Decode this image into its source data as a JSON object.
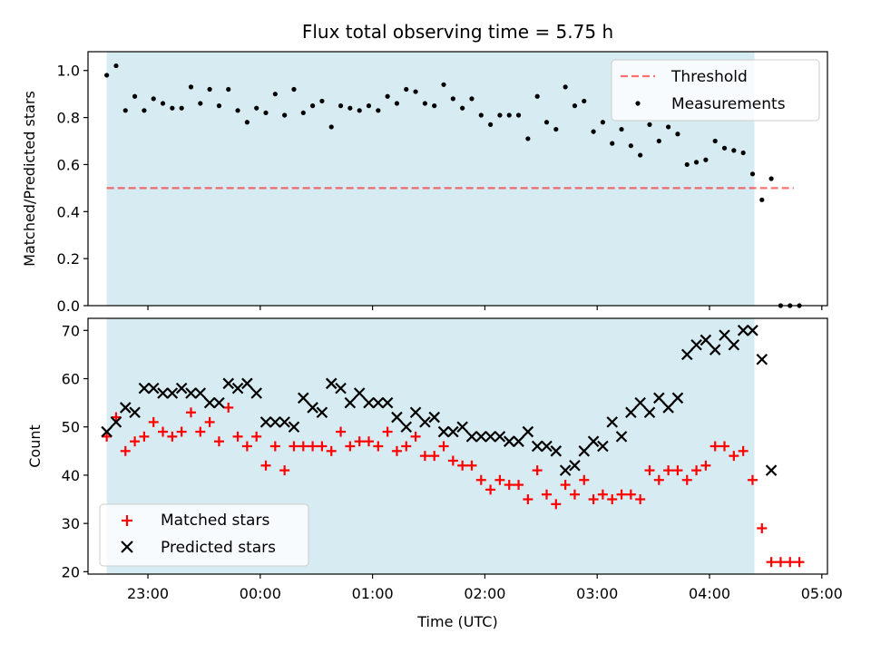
{
  "chart_data": [
    {
      "type": "scatter",
      "title": "Flux total observing time = 5.75 h",
      "xlabel": "",
      "ylabel": "Matched/Predicted stars",
      "ylim": [
        0,
        1.08
      ],
      "y_ticks": [
        "0.0",
        "0.2",
        "0.4",
        "0.6",
        "0.8",
        "1.0"
      ],
      "x_time_range": [
        "22:28",
        "05:03"
      ],
      "observing_window": [
        "22:38",
        "04:24"
      ],
      "shaded_color": "#add8e6",
      "threshold": {
        "label": "Threshold",
        "value": 0.5,
        "x": [
          "22:38",
          "04:45"
        ],
        "color": "#ff0000",
        "style": "dashed"
      },
      "legend": {
        "placement": "top-right",
        "entries": [
          "Threshold",
          "Measurements"
        ]
      },
      "series": [
        {
          "name": "Measurements",
          "color": "#000000",
          "marker": "dot",
          "x": [
            "22:38",
            "22:43",
            "22:48",
            "22:53",
            "22:58",
            "23:03",
            "23:08",
            "23:13",
            "23:18",
            "23:23",
            "23:28",
            "23:33",
            "23:38",
            "23:43",
            "23:48",
            "23:53",
            "23:58",
            "00:03",
            "00:08",
            "00:13",
            "00:18",
            "00:23",
            "00:28",
            "00:33",
            "00:38",
            "00:43",
            "00:48",
            "00:53",
            "00:58",
            "01:03",
            "01:08",
            "01:13",
            "01:18",
            "01:23",
            "01:28",
            "01:33",
            "01:38",
            "01:43",
            "01:48",
            "01:53",
            "01:58",
            "02:03",
            "02:08",
            "02:13",
            "02:18",
            "02:23",
            "02:28",
            "02:33",
            "02:38",
            "02:43",
            "02:48",
            "02:53",
            "02:58",
            "03:03",
            "03:08",
            "03:13",
            "03:18",
            "03:23",
            "03:28",
            "03:33",
            "03:38",
            "03:43",
            "03:48",
            "03:53",
            "03:58",
            "04:03",
            "04:08",
            "04:13",
            "04:18",
            "04:23",
            "04:28",
            "04:33",
            "04:38",
            "04:43",
            "04:48"
          ],
          "values": [
            0.98,
            1.02,
            0.83,
            0.89,
            0.83,
            0.88,
            0.86,
            0.84,
            0.84,
            0.93,
            0.86,
            0.92,
            0.85,
            0.92,
            0.83,
            0.78,
            0.84,
            0.82,
            0.9,
            0.81,
            0.92,
            0.82,
            0.85,
            0.87,
            0.76,
            0.85,
            0.84,
            0.83,
            0.85,
            0.83,
            0.89,
            0.86,
            0.92,
            0.91,
            0.86,
            0.85,
            0.94,
            0.88,
            0.84,
            0.88,
            0.81,
            0.77,
            0.81,
            0.81,
            0.81,
            0.71,
            0.89,
            0.78,
            0.75,
            0.93,
            0.85,
            0.87,
            0.74,
            0.78,
            0.69,
            0.75,
            0.68,
            0.64,
            0.77,
            0.7,
            0.76,
            0.73,
            0.6,
            0.61,
            0.62,
            0.7,
            0.67,
            0.66,
            0.65,
            0.56,
            0.45,
            0.54,
            0.0,
            0.0,
            0.0
          ]
        }
      ]
    },
    {
      "type": "scatter",
      "title": "",
      "xlabel": "Time (UTC)",
      "ylabel": "Count",
      "ylim": [
        19.5,
        72.5
      ],
      "y_ticks": [
        "20",
        "30",
        "40",
        "50",
        "60",
        "70"
      ],
      "x_ticks": [
        "23:00",
        "00:00",
        "01:00",
        "02:00",
        "03:00",
        "04:00",
        "05:00"
      ],
      "x_time_range": [
        "22:28",
        "05:03"
      ],
      "observing_window": [
        "22:38",
        "04:24"
      ],
      "shaded_color": "#add8e6",
      "legend": {
        "placement": "bottom-left",
        "entries": [
          "Matched stars",
          "Predicted stars"
        ]
      },
      "series": [
        {
          "name": "Matched stars",
          "color": "#ff0000",
          "marker": "plus",
          "x": [
            "22:38",
            "22:43",
            "22:48",
            "22:53",
            "22:58",
            "23:03",
            "23:08",
            "23:13",
            "23:18",
            "23:23",
            "23:28",
            "23:33",
            "23:38",
            "23:43",
            "23:48",
            "23:53",
            "23:58",
            "00:03",
            "00:08",
            "00:13",
            "00:18",
            "00:23",
            "00:28",
            "00:33",
            "00:38",
            "00:43",
            "00:48",
            "00:53",
            "00:58",
            "01:03",
            "01:08",
            "01:13",
            "01:18",
            "01:23",
            "01:28",
            "01:33",
            "01:38",
            "01:43",
            "01:48",
            "01:53",
            "01:58",
            "02:03",
            "02:08",
            "02:13",
            "02:18",
            "02:23",
            "02:28",
            "02:33",
            "02:38",
            "02:43",
            "02:48",
            "02:53",
            "02:58",
            "03:03",
            "03:08",
            "03:13",
            "03:18",
            "03:23",
            "03:28",
            "03:33",
            "03:38",
            "03:43",
            "03:48",
            "03:53",
            "03:58",
            "04:03",
            "04:08",
            "04:13",
            "04:18",
            "04:23",
            "04:28",
            "04:33",
            "04:38",
            "04:43",
            "04:48"
          ],
          "values": [
            48,
            52,
            45,
            47,
            48,
            51,
            49,
            48,
            49,
            53,
            49,
            51,
            47,
            54,
            48,
            46,
            48,
            42,
            46,
            41,
            46,
            46,
            46,
            46,
            45,
            49,
            46,
            47,
            47,
            46,
            49,
            45,
            46,
            48,
            44,
            44,
            46,
            43,
            42,
            42,
            39,
            37,
            39,
            38,
            38,
            35,
            41,
            36,
            34,
            38,
            36,
            39,
            35,
            36,
            35,
            36,
            36,
            35,
            41,
            39,
            41,
            41,
            39,
            41,
            42,
            46,
            46,
            44,
            45,
            39,
            29,
            22,
            22,
            22,
            22
          ]
        },
        {
          "name": "Predicted stars",
          "color": "#000000",
          "marker": "x",
          "x": [
            "22:38",
            "22:43",
            "22:48",
            "22:53",
            "22:58",
            "23:03",
            "23:08",
            "23:13",
            "23:18",
            "23:23",
            "23:28",
            "23:33",
            "23:38",
            "23:43",
            "23:48",
            "23:53",
            "23:58",
            "00:03",
            "00:08",
            "00:13",
            "00:18",
            "00:23",
            "00:28",
            "00:33",
            "00:38",
            "00:43",
            "00:48",
            "00:53",
            "00:58",
            "01:03",
            "01:08",
            "01:13",
            "01:18",
            "01:23",
            "01:28",
            "01:33",
            "01:38",
            "01:43",
            "01:48",
            "01:53",
            "01:58",
            "02:03",
            "02:08",
            "02:13",
            "02:18",
            "02:23",
            "02:28",
            "02:33",
            "02:38",
            "02:43",
            "02:48",
            "02:53",
            "02:58",
            "03:03",
            "03:08",
            "03:13",
            "03:18",
            "03:23",
            "03:28",
            "03:33",
            "03:38",
            "03:43",
            "03:48",
            "03:53",
            "03:58",
            "04:03",
            "04:08",
            "04:13",
            "04:18",
            "04:23",
            "04:28",
            "04:33"
          ],
          "values": [
            49,
            51,
            54,
            53,
            58,
            58,
            57,
            57,
            58,
            57,
            57,
            55,
            55,
            59,
            58,
            59,
            57,
            51,
            51,
            51,
            50,
            56,
            54,
            53,
            59,
            58,
            55,
            57,
            55,
            55,
            55,
            52,
            50,
            53,
            51,
            52,
            49,
            49,
            50,
            48,
            48,
            48,
            48,
            47,
            47,
            49,
            46,
            46,
            45,
            41,
            42,
            45,
            47,
            46,
            51,
            48,
            53,
            55,
            53,
            56,
            54,
            56,
            65,
            67,
            68,
            66,
            69,
            67,
            70,
            70,
            64,
            41
          ]
        }
      ]
    }
  ]
}
